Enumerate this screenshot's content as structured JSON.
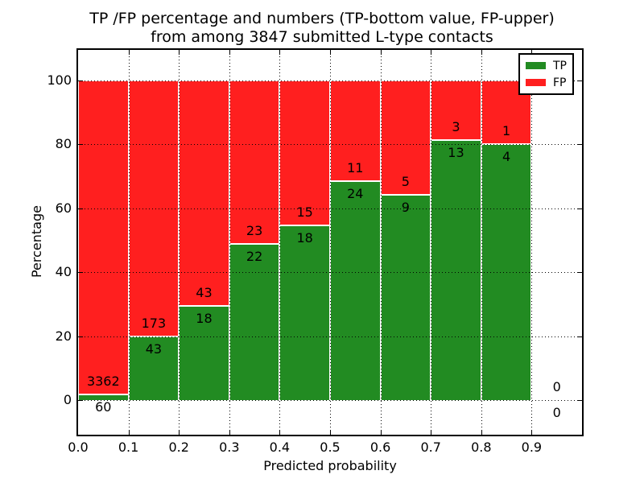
{
  "chart_data": {
    "type": "bar",
    "stacked": true,
    "title_line1": "TP /FP percentage and numbers (TP-bottom value, FP-upper)",
    "title_line2": "from among 3847 submitted L-type contacts",
    "xlabel": "Predicted probability",
    "ylabel": "Percentage",
    "categories": [
      "0.0-0.1",
      "0.1-0.2",
      "0.2-0.3",
      "0.3-0.4",
      "0.4-0.5",
      "0.5-0.6",
      "0.6-0.7",
      "0.7-0.8",
      "0.8-0.9",
      "0.9-1.0"
    ],
    "series": [
      {
        "name": "TP",
        "color": "#228b22",
        "values": [
          60,
          43,
          18,
          22,
          18,
          24,
          9,
          13,
          4,
          0
        ]
      },
      {
        "name": "FP",
        "color": "#ff1f1f",
        "values": [
          3362,
          173,
          43,
          23,
          15,
          11,
          5,
          3,
          1,
          0
        ]
      }
    ],
    "bar_height_is": "TP percentage of bin total; TP+FP stack to 100%",
    "x_ticks": [
      "0.0",
      "0.1",
      "0.2",
      "0.3",
      "0.4",
      "0.5",
      "0.6",
      "0.7",
      "0.8",
      "0.9"
    ],
    "y_ticks": [
      0,
      20,
      40,
      60,
      80,
      100
    ],
    "xlim": [
      0.0,
      1.0
    ],
    "ylim": [
      -11,
      110
    ],
    "grid": "dotted black, horizontal and vertical",
    "legend": {
      "position": "upper right",
      "entries": [
        {
          "label": "TP",
          "color": "#228b22"
        },
        {
          "label": "FP",
          "color": "#ff1f1f"
        }
      ]
    }
  }
}
